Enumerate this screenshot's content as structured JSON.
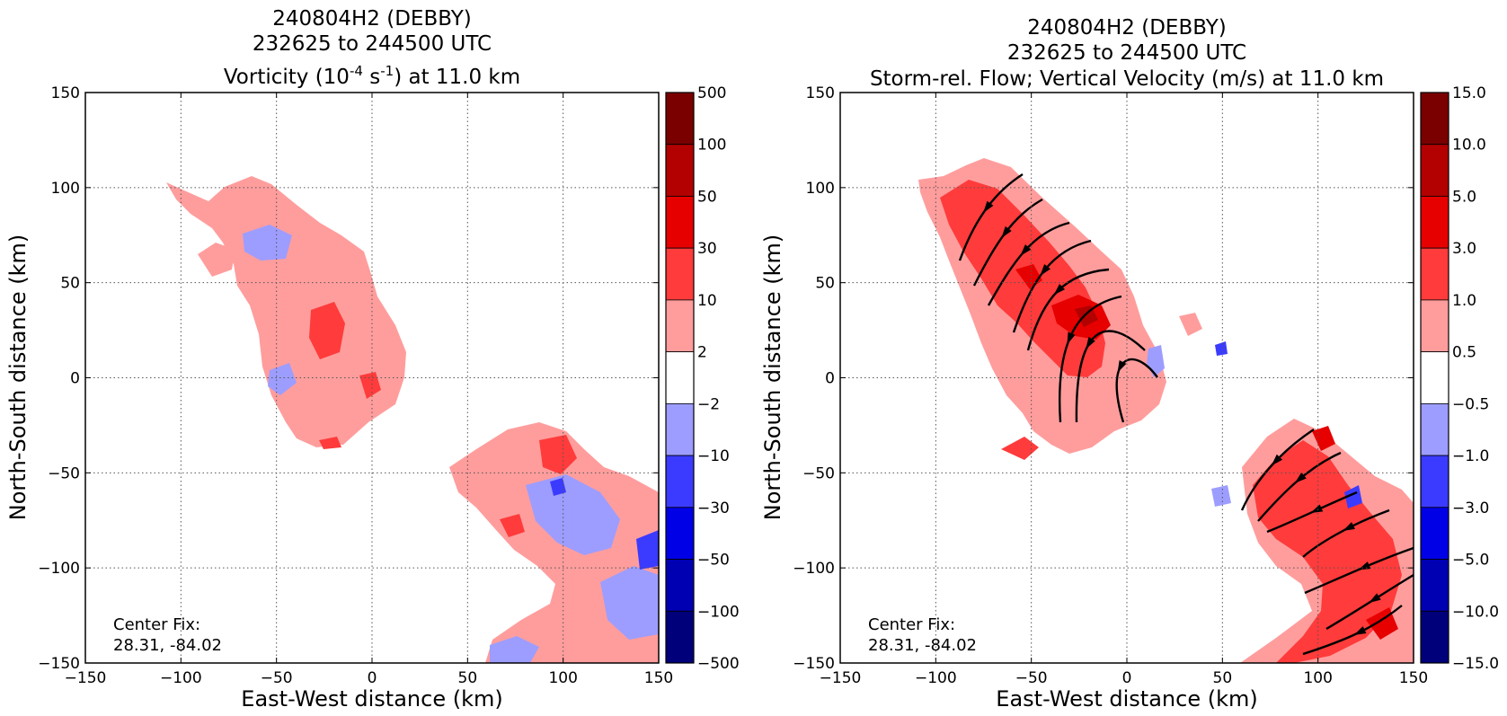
{
  "chart_data": [
    {
      "type": "heatmap",
      "panel": "left",
      "title_lines": [
        "240804H2 (DEBBY)",
        "232625 to 244500 UTC"
      ],
      "title_line3_prefix": "Vorticity (10",
      "title_line3_sup1": "-4",
      "title_line3_mid": " s",
      "title_line3_sup2": "-1",
      "title_line3_suffix": ") at 11.0 km",
      "xlabel": "East-West distance (km)",
      "ylabel": "North-South distance (km)",
      "xlim": [
        -150,
        150
      ],
      "ylim": [
        -150,
        150
      ],
      "xticks": [
        "−150",
        "−100",
        "−50",
        "0",
        "50",
        "100",
        "150"
      ],
      "yticks": [
        "150",
        "100",
        "50",
        "0",
        "−50",
        "−100",
        "−150"
      ],
      "grid": true,
      "annotation_lines": [
        "Center Fix:",
        "28.31, -84.02"
      ],
      "colorbar": {
        "levels": [
          "500",
          "100",
          "50",
          "30",
          "10",
          "2",
          "−2",
          "−10",
          "−30",
          "−50",
          "−100",
          "−500"
        ],
        "colors": [
          "#7a0000",
          "#b30000",
          "#e60000",
          "#ff3b3b",
          "#ff9d9d",
          "#ffffff",
          "#9d9dff",
          "#3b3bff",
          "#0000e6",
          "#0000b3",
          "#00007a"
        ]
      }
    },
    {
      "type": "heatmap",
      "panel": "right",
      "title_lines": [
        "240804H2 (DEBBY)",
        "232625 to 244500 UTC",
        "Storm-rel. Flow; Vertical Velocity (m/s) at 11.0 km"
      ],
      "xlabel": "East-West distance (km)",
      "ylabel": "North-South distance (km)",
      "xlim": [
        -150,
        150
      ],
      "ylim": [
        -150,
        150
      ],
      "xticks": [
        "−150",
        "−100",
        "−50",
        "0",
        "50",
        "100",
        "150"
      ],
      "yticks": [
        "150",
        "100",
        "50",
        "0",
        "−50",
        "−100",
        "−150"
      ],
      "grid": true,
      "annotation_lines": [
        "Center Fix:",
        "28.31, -84.02"
      ],
      "colorbar": {
        "levels": [
          "15.0",
          "10.0",
          "5.0",
          "3.0",
          "1.0",
          "0.5",
          "−0.5",
          "−1.0",
          "−3.0",
          "−5.0",
          "−10.0",
          "−15.0"
        ],
        "colors": [
          "#7a0000",
          "#b30000",
          "#e60000",
          "#ff3b3b",
          "#ff9d9d",
          "#ffffff",
          "#9d9dff",
          "#3b3bff",
          "#0000e6",
          "#0000b3",
          "#00007a"
        ]
      }
    }
  ]
}
